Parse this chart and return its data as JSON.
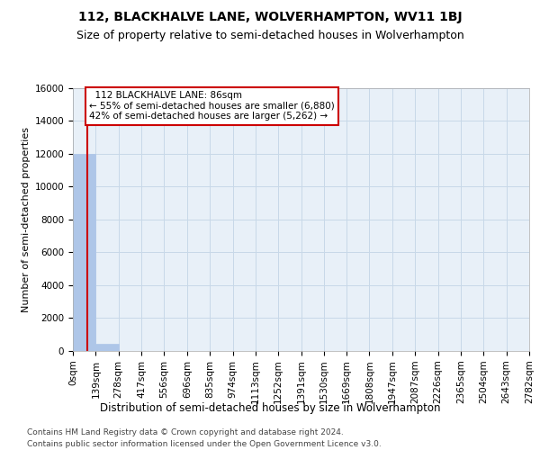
{
  "title": "112, BLACKHALVE LANE, WOLVERHAMPTON, WV11 1BJ",
  "subtitle": "Size of property relative to semi-detached houses in Wolverhampton",
  "xlabel": "Distribution of semi-detached houses by size in Wolverhampton",
  "ylabel": "Number of semi-detached properties",
  "footer_line1": "Contains HM Land Registry data © Crown copyright and database right 2024.",
  "footer_line2": "Contains public sector information licensed under the Open Government Licence v3.0.",
  "property_size": 86,
  "property_label": "112 BLACKHALVE LANE: 86sqm",
  "pct_smaller": 55,
  "count_smaller": 6880,
  "pct_larger": 42,
  "count_larger": 5262,
  "bin_edges": [
    0,
    139,
    278,
    417,
    556,
    696,
    835,
    974,
    1113,
    1252,
    1391,
    1530,
    1669,
    1808,
    1947,
    2087,
    2226,
    2365,
    2504,
    2643,
    2782
  ],
  "bar_values": [
    12000,
    450,
    0,
    0,
    0,
    0,
    0,
    0,
    0,
    0,
    0,
    0,
    0,
    0,
    0,
    0,
    0,
    0,
    0,
    0
  ],
  "bar_color": "#aec6e8",
  "bar_edge_color": "#aec6e8",
  "grid_color": "#c8d8e8",
  "background_color": "#e8f0f8",
  "annotation_box_color": "#ffffff",
  "annotation_border_color": "#cc0000",
  "red_line_color": "#cc0000",
  "ylim": [
    0,
    16000
  ],
  "yticks": [
    0,
    2000,
    4000,
    6000,
    8000,
    10000,
    12000,
    14000,
    16000
  ],
  "title_fontsize": 10,
  "subtitle_fontsize": 9,
  "ylabel_fontsize": 8,
  "xlabel_fontsize": 8.5,
  "tick_fontsize": 7.5,
  "annotation_fontsize": 7.5,
  "footer_fontsize": 6.5
}
